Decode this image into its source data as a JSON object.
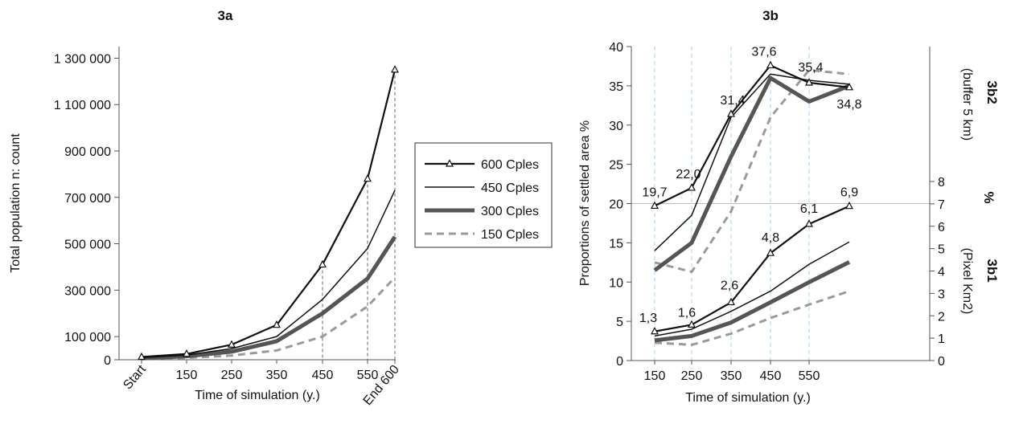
{
  "chart_data": [
    {
      "type": "line",
      "title": "3a",
      "xlabel": "Time of simulation (y.)",
      "ylabel": "Total population  n: count",
      "x": [
        0,
        150,
        250,
        350,
        450,
        550,
        600
      ],
      "x_tick_labels": [
        "Start",
        "150",
        "250",
        "350",
        "450",
        "550",
        "End 600"
      ],
      "ylim": [
        0,
        1350000
      ],
      "y_ticks": [
        0,
        100000,
        300000,
        500000,
        700000,
        900000,
        1100000,
        1300000
      ],
      "y_tick_labels": [
        "0",
        "100 000",
        "300 000",
        "500 000",
        "700 000",
        "900 000",
        "1 100 000",
        "1 300 000"
      ],
      "legend_position": "right-outside",
      "series": [
        {
          "name": "600 Cples",
          "color": "#111111",
          "values": [
            12000,
            25000,
            65000,
            150000,
            410000,
            780000,
            1250000
          ]
        },
        {
          "name": "450 Cples",
          "color": "#111111",
          "values": [
            9000,
            20000,
            48000,
            100000,
            260000,
            480000,
            730000
          ]
        },
        {
          "name": "300 Cples",
          "color": "#555555",
          "values": [
            6000,
            15000,
            35000,
            80000,
            200000,
            350000,
            530000
          ]
        },
        {
          "name": "150 Cples",
          "color": "#9a9a9a",
          "values": [
            3000,
            8000,
            18000,
            40000,
            100000,
            230000,
            355000
          ]
        }
      ]
    },
    {
      "type": "line",
      "title": "3b",
      "xlabel": "Time of simulation (y.)",
      "ylabel": "Proportions of settled area %",
      "right_label_top": "(buffer 5 km)",
      "right_label_top_title": "3b2",
      "right_label_mid": "%",
      "right_label_bottom": "(Pixel Km2)",
      "right_label_bottom_title": "3b1",
      "x": [
        160,
        260,
        360,
        460,
        560,
        610
      ],
      "x_tick_labels": [
        "150",
        "250",
        "350",
        "450",
        "550"
      ],
      "ylim": [
        0,
        40
      ],
      "y_ticks": [
        0,
        5,
        10,
        15,
        20,
        25,
        30,
        35,
        40
      ],
      "y2lim": [
        0,
        8
      ],
      "y2_ticks": [
        0,
        1,
        2,
        3,
        4,
        5,
        6,
        7,
        8
      ],
      "series_b2": [
        {
          "name": "600 Cples",
          "values": [
            19.7,
            22.0,
            31.4,
            37.6,
            35.4,
            34.8
          ],
          "labels": [
            "19,7",
            "22,0",
            "31,4",
            "37,6",
            "35,4",
            "34,8"
          ]
        },
        {
          "name": "450 Cples",
          "values": [
            14.0,
            18.5,
            31.0,
            36.5,
            35.7,
            35.2
          ]
        },
        {
          "name": "300 Cples",
          "values": [
            11.5,
            15.0,
            26.0,
            36.0,
            33.0,
            35.0
          ]
        },
        {
          "name": "150 Cples",
          "values": [
            12.5,
            11.3,
            19.0,
            31.0,
            37.0,
            36.5
          ]
        }
      ],
      "series_b1": [
        {
          "name": "600 Cples",
          "values": [
            1.3,
            1.6,
            2.6,
            4.8,
            6.1,
            6.9
          ],
          "labels": [
            "1,3",
            "1,6",
            "2,6",
            "4,8",
            "6,1",
            "6,9"
          ]
        },
        {
          "name": "450 Cples",
          "values": [
            1.1,
            1.4,
            2.2,
            3.1,
            4.3,
            5.3
          ]
        },
        {
          "name": "300 Cples",
          "values": [
            0.9,
            1.1,
            1.7,
            2.6,
            3.5,
            4.4
          ]
        },
        {
          "name": "150 Cples",
          "values": [
            0.8,
            0.7,
            1.2,
            1.9,
            2.5,
            3.1
          ]
        }
      ]
    }
  ]
}
